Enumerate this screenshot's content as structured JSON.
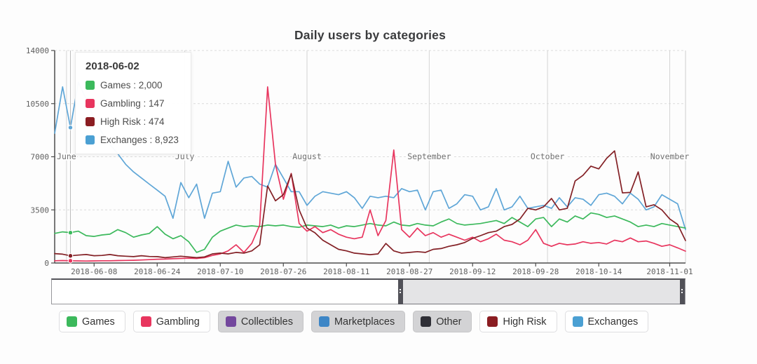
{
  "title": "Daily users by categories",
  "tooltip": {
    "date": "2018-06-02",
    "rows": [
      {
        "label": "Games",
        "value": "2,000",
        "color": "#3cb95c"
      },
      {
        "label": "Gambling",
        "value": "147",
        "color": "#e8355e"
      },
      {
        "label": "High Risk",
        "value": "474",
        "color": "#8b1d22"
      },
      {
        "label": "Exchanges",
        "value": "8,923",
        "color": "#4ba0d3"
      }
    ]
  },
  "legend": {
    "items": [
      {
        "label": "Games",
        "color": "#3cb95c",
        "enabled": true
      },
      {
        "label": "Gambling",
        "color": "#e8355e",
        "enabled": true
      },
      {
        "label": "Collectibles",
        "color": "#73479d",
        "enabled": false
      },
      {
        "label": "Marketplaces",
        "color": "#3d86c6",
        "enabled": false
      },
      {
        "label": "Other",
        "color": "#2f2f36",
        "enabled": false
      },
      {
        "label": "High Risk",
        "color": "#8b1d22",
        "enabled": true
      },
      {
        "label": "Exchanges",
        "color": "#4ba0d3",
        "enabled": true
      }
    ]
  },
  "slider": {
    "selected_fraction_start": 0.547,
    "selected_fraction_end": 1.0
  },
  "chart_data": {
    "type": "line",
    "title": "Daily users by categories",
    "x_start_date": "2018-05-29",
    "x_span_days": 160,
    "sample_step_days": 2,
    "ylim": [
      0,
      14000
    ],
    "y_tick_values": [
      0,
      3500,
      7000,
      10500,
      14000
    ],
    "y_tick_labels": [
      "0",
      "3500",
      "7000",
      "10500",
      "14000"
    ],
    "x_ticks": [
      {
        "day": 10,
        "label": "2018-06-08"
      },
      {
        "day": 26,
        "label": "2018-06-24"
      },
      {
        "day": 42,
        "label": "2018-07-10"
      },
      {
        "day": 58,
        "label": "2018-07-26"
      },
      {
        "day": 74,
        "label": "2018-08-11"
      },
      {
        "day": 90,
        "label": "2018-08-27"
      },
      {
        "day": 106,
        "label": "2018-09-12"
      },
      {
        "day": 122,
        "label": "2018-09-28"
      },
      {
        "day": 138,
        "label": "2018-10-14"
      },
      {
        "day": 156,
        "label": "2018-11-01"
      }
    ],
    "month_marks": [
      {
        "day": 3,
        "label": "June"
      },
      {
        "day": 33,
        "label": "July"
      },
      {
        "day": 64,
        "label": "August"
      },
      {
        "day": 95,
        "label": "September"
      },
      {
        "day": 125,
        "label": "October"
      },
      {
        "day": 156,
        "label": "November"
      }
    ],
    "hover": {
      "day": 4,
      "date": "2018-06-02",
      "values": {
        "Games": 2000,
        "Gambling": 147,
        "High Risk": 474,
        "Exchanges": 8923
      }
    },
    "series": [
      {
        "name": "Exchanges",
        "color": "#5fa6d7",
        "values": [
          8550,
          11600,
          8923,
          11900,
          10800,
          9500,
          8600,
          7800,
          7200,
          6500,
          6000,
          5600,
          5200,
          4800,
          4400,
          2950,
          5300,
          4300,
          5200,
          2950,
          4600,
          4700,
          6700,
          5000,
          5600,
          5700,
          5200,
          5000,
          6500,
          5600,
          4700,
          4700,
          3800,
          4400,
          4700,
          4600,
          4500,
          4700,
          4300,
          3600,
          4400,
          4300,
          4400,
          4300,
          4900,
          4700,
          4800,
          3500,
          4700,
          4800,
          3600,
          3900,
          4500,
          4400,
          3500,
          3700,
          4900,
          3500,
          3700,
          4400,
          3600,
          3700,
          3800,
          3600,
          4300,
          3700,
          4300,
          4200,
          3800,
          4500,
          4600,
          4400,
          3900,
          4600,
          4200,
          3500,
          3700,
          4500,
          4200,
          3900,
          2200
        ]
      },
      {
        "name": "Games",
        "color": "#3cb95c",
        "values": [
          1950,
          2050,
          2000,
          2100,
          1800,
          1750,
          1850,
          1900,
          2200,
          2000,
          1700,
          1850,
          1950,
          2400,
          1900,
          1600,
          1800,
          1400,
          700,
          900,
          1700,
          2100,
          2300,
          2500,
          2400,
          2450,
          2400,
          2500,
          2450,
          2500,
          2400,
          2350,
          2500,
          2450,
          2400,
          2500,
          2300,
          2450,
          2400,
          2500,
          2600,
          2500,
          2450,
          2700,
          2500,
          2450,
          2600,
          2500,
          2450,
          2700,
          2900,
          2600,
          2500,
          2550,
          2600,
          2700,
          2800,
          2600,
          3000,
          2700,
          2400,
          2900,
          3000,
          2400,
          2900,
          2700,
          3100,
          2900,
          3300,
          3200,
          3000,
          3100,
          2900,
          2700,
          2400,
          2500,
          2400,
          2600,
          2500,
          2400,
          2300
        ]
      },
      {
        "name": "Gambling",
        "color": "#e8355e",
        "values": [
          150,
          160,
          147,
          140,
          130,
          140,
          150,
          150,
          160,
          170,
          180,
          200,
          220,
          250,
          260,
          280,
          300,
          320,
          300,
          350,
          500,
          600,
          800,
          1200,
          700,
          1300,
          2500,
          11600,
          6500,
          4200,
          5900,
          2600,
          2100,
          2400,
          2000,
          2200,
          1900,
          1700,
          1600,
          1700,
          3500,
          1800,
          2800,
          7450,
          2200,
          1700,
          2300,
          1800,
          2000,
          1700,
          1900,
          1700,
          1500,
          1700,
          1400,
          1600,
          1900,
          1500,
          1400,
          1200,
          1500,
          2200,
          1300,
          1100,
          1300,
          1200,
          1250,
          1400,
          1300,
          1350,
          1250,
          1500,
          1400,
          1650,
          1400,
          1450,
          1300,
          1100,
          1200,
          1000,
          780
        ]
      },
      {
        "name": "High Risk",
        "color": "#832025",
        "values": [
          620,
          580,
          474,
          520,
          560,
          480,
          500,
          560,
          480,
          450,
          420,
          480,
          430,
          420,
          350,
          400,
          450,
          400,
          350,
          400,
          600,
          650,
          600,
          700,
          650,
          800,
          1200,
          5080,
          4100,
          4500,
          5870,
          3500,
          2300,
          1990,
          1500,
          1200,
          900,
          800,
          650,
          600,
          550,
          600,
          1290,
          800,
          650,
          700,
          750,
          700,
          900,
          950,
          1100,
          1200,
          1350,
          1620,
          1800,
          2000,
          2100,
          2400,
          2540,
          2900,
          3600,
          3500,
          3700,
          4250,
          3500,
          3600,
          5400,
          5780,
          6380,
          6200,
          6900,
          7390,
          4620,
          4650,
          6000,
          3700,
          3840,
          3500,
          2900,
          2540,
          1480
        ]
      }
    ]
  }
}
